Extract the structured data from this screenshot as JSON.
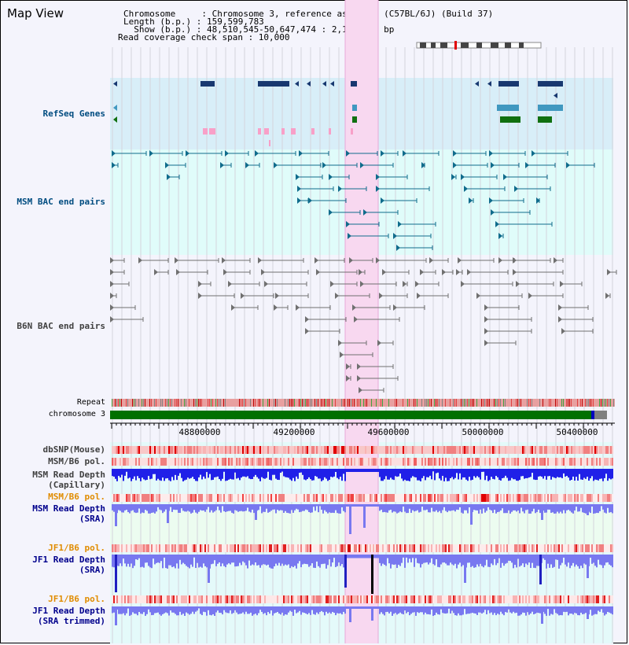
{
  "title": "Map View",
  "info": {
    "line1": "Chromosome     : Chromosome 3, reference assembly (C57BL/6J) (Build 37)",
    "line2": "Length (b.p.) : 159,599,783",
    "line3": "  Show (b.p.) : 48,510,545-50,647,474 : 2,136,930 bp",
    "line4": "Read coverage check span : 10,000"
  },
  "tracks": {
    "refseq": "RefSeq Genes",
    "msm_bac": "MSM BAC end pairs",
    "b6n_bac": "B6N BAC end pairs",
    "repeat": "Repeat",
    "chromosome": "chromosome 3",
    "dbsnp": "dbSNP(Mouse)",
    "msm_b6_pol": "MSM/B6 pol.",
    "msm_depth_cap_1": "MSM Read Depth",
    "msm_depth_cap_2": "(Capillary)",
    "msm_b6_pol2": "MSM/B6 pol.",
    "msm_depth_sra_1": "MSM Read Depth",
    "msm_depth_sra_2": "(SRA)",
    "jf1_b6_pol": "JF1/B6 pol.",
    "jf1_depth_sra_1": "JF1 Read Depth",
    "jf1_depth_sra_2": "(SRA)",
    "jf1_b6_pol2": "JF1/B6 pol.",
    "jf1_depth_trim_1": "JF1 Read Depth",
    "jf1_depth_trim_2": "(SRA trimmed)"
  },
  "axis": {
    "ticks": [
      "48800000",
      "49200000",
      "49600000",
      "50000000",
      "50400000"
    ]
  },
  "colors": {
    "refseq_bg": "#d8eef8",
    "msm_bac_bg": "#e0fcfa",
    "b6n_bg": "#f4f4fc",
    "highlight": "#f8d8f0",
    "gene_blue": "#183870",
    "gene_teal": "#4098c0",
    "gene_green": "#107010",
    "msm_label": "#004c80",
    "b6n_label": "#404040",
    "sra_label": "#00008c",
    "pol_label": "#e08c00",
    "depth_blue": "#2020e8",
    "depth_light": "#7878f0"
  }
}
